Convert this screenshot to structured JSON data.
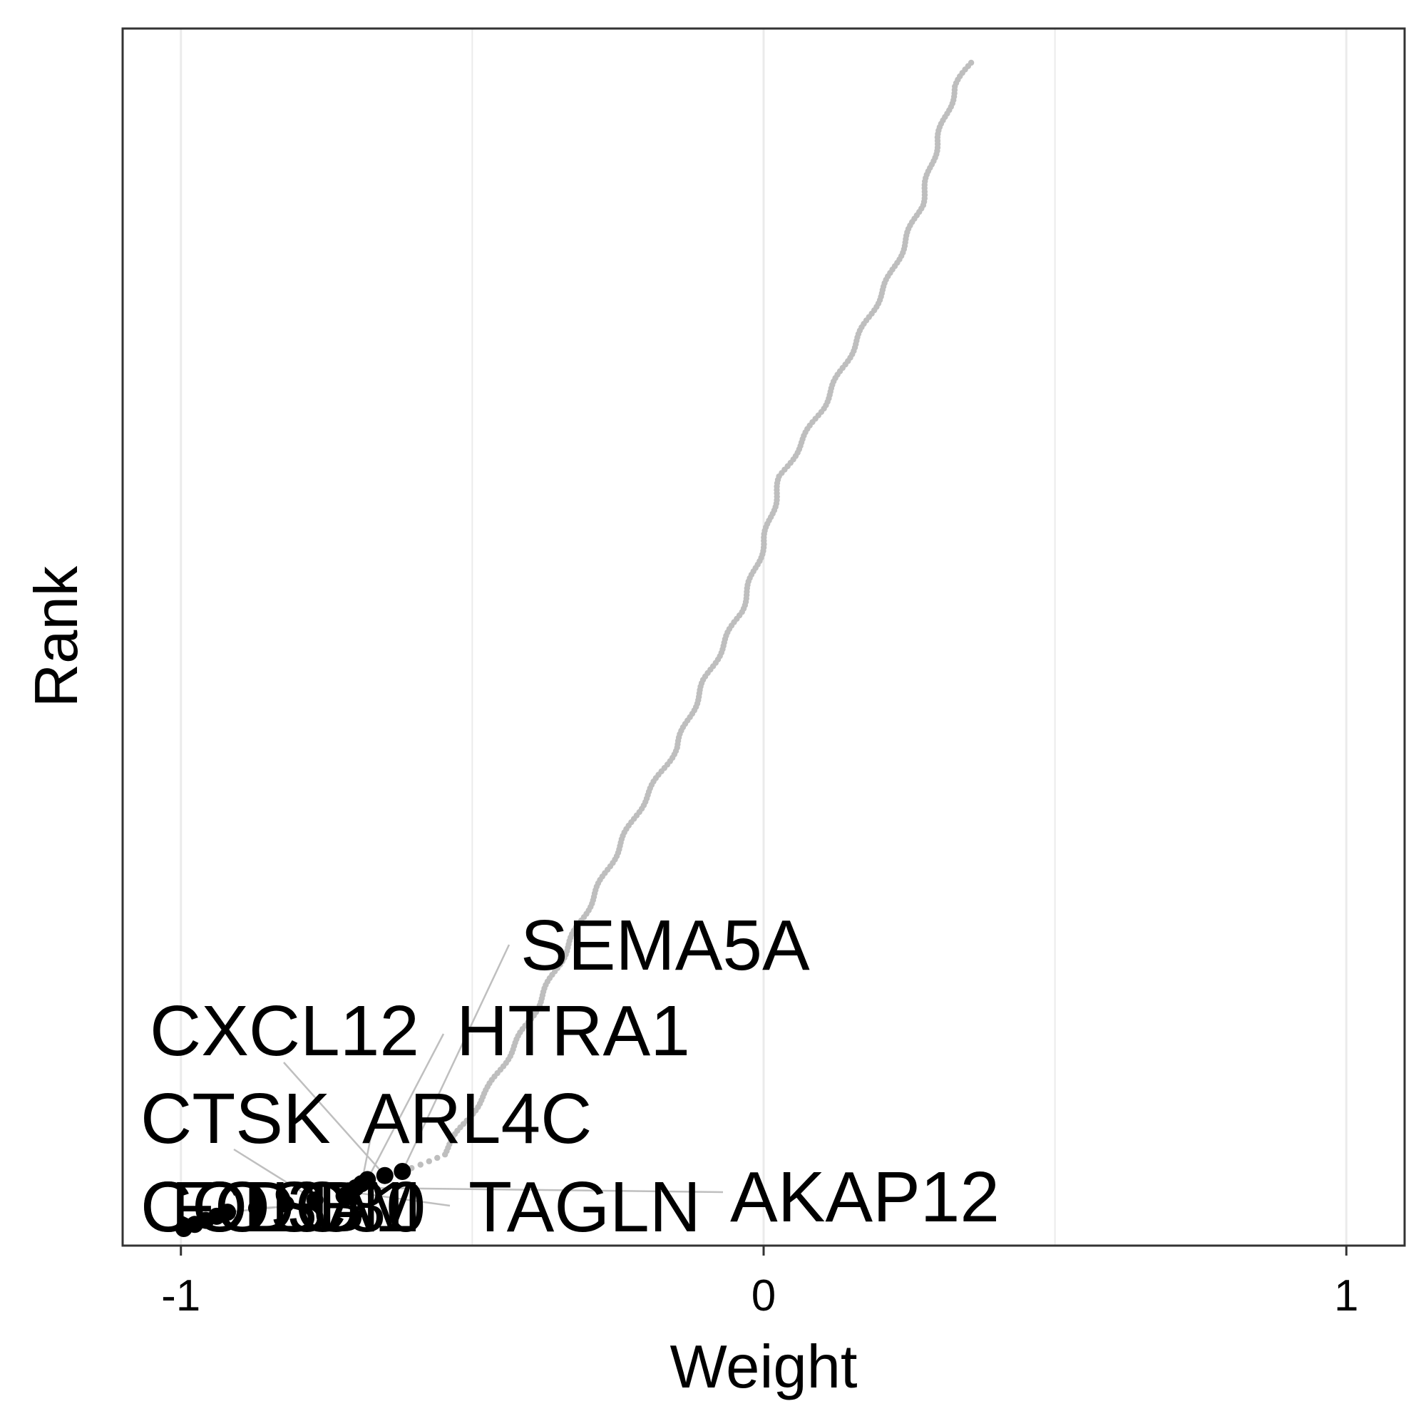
{
  "chart_data": {
    "type": "scatter",
    "xlabel": "Weight",
    "ylabel": "Rank",
    "xlim": [
      -1.1,
      1.1
    ],
    "x_ticks": [
      -1,
      0,
      1
    ],
    "x_tick_labels": [
      "-1",
      "0",
      "1"
    ],
    "grid": "vertical major and minor lines",
    "legend": "none",
    "colors": {
      "background_points": "#bebebe",
      "highlight_points": "#000000",
      "grid": "#ebebeb",
      "panel_border": "#333333",
      "connector": "#bfbfbf"
    },
    "curve_knots": [
      {
        "rank": 1,
        "weight": -0.995
      },
      {
        "rank": 5,
        "weight": -0.92
      },
      {
        "rank": 9,
        "weight": -0.72
      },
      {
        "rank": 13,
        "weight": -0.68
      },
      {
        "rank": 15,
        "weight": -0.62
      },
      {
        "rank": 20,
        "weight": -0.55
      },
      {
        "rank": 40,
        "weight": -0.47
      },
      {
        "rank": 60,
        "weight": -0.4
      },
      {
        "rank": 80,
        "weight": -0.34
      },
      {
        "rank": 100,
        "weight": -0.28
      },
      {
        "rank": 120,
        "weight": -0.22
      },
      {
        "rank": 140,
        "weight": -0.15
      },
      {
        "rank": 160,
        "weight": -0.1
      },
      {
        "rank": 180,
        "weight": -0.04
      },
      {
        "rank": 200,
        "weight": 0.0
      },
      {
        "rank": 220,
        "weight": 0.03
      },
      {
        "rank": 240,
        "weight": 0.1
      },
      {
        "rank": 260,
        "weight": 0.16
      },
      {
        "rank": 280,
        "weight": 0.22
      },
      {
        "rank": 300,
        "weight": 0.27
      },
      {
        "rank": 320,
        "weight": 0.3
      },
      {
        "rank": 335,
        "weight": 0.33
      },
      {
        "rank": 342,
        "weight": 0.355
      }
    ],
    "total_points": 342,
    "highlighted_count": 15,
    "labels": [
      {
        "text": "SEMA5A",
        "rank": 15
      },
      {
        "text": "CXCL12",
        "rank": 14
      },
      {
        "text": "HTRA1",
        "rank": 13
      },
      {
        "text": "CTSK",
        "rank": 8
      },
      {
        "text": "ARL4C",
        "rank": 12
      },
      {
        "text": "AKAP12",
        "rank": 11
      },
      {
        "text": "TAGLN",
        "rank": 10
      },
      {
        "text": "COL3A1",
        "rank": 2
      },
      {
        "text": "CCDC80",
        "rank": 3
      },
      {
        "text": "FOSB",
        "rank": 5
      },
      {
        "text": "LUM",
        "rank": 6
      }
    ]
  }
}
